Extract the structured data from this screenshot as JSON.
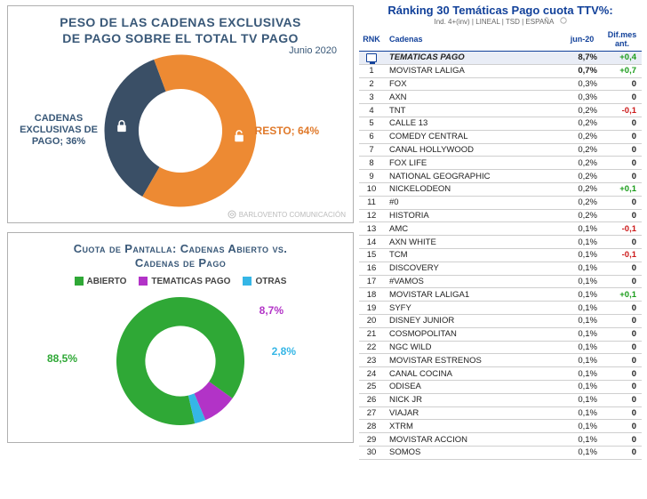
{
  "panel1": {
    "title_l1": "PESO DE LAS CADENAS EXCLUSIVAS",
    "title_l2": "DE PAGO SOBRE EL TOTAL TV PAGO",
    "date": "Junio 2020",
    "left_label": "CADENAS EXCLUSIVAS DE PAGO; 36%",
    "right_label": "RESTO; 64%",
    "donut": {
      "type": "donut",
      "values": [
        36,
        64
      ],
      "colors": [
        "#3a4f66",
        "#ed8a33"
      ],
      "inner_ratio": 0.55,
      "start_angle_deg": 120,
      "bg": "#ffffff"
    },
    "watermark": "BARLOVENTO COMUNICACIÓN"
  },
  "panel2": {
    "title_l1": "Cuota de Pantalla: Cadenas Abierto vs.",
    "title_l2": "Cadenas de Pago",
    "legend": [
      {
        "label": "ABIERTO",
        "color": "#2fa836"
      },
      {
        "label": "TEMATICAS PAGO",
        "color": "#b233c7"
      },
      {
        "label": "OTRAS",
        "color": "#35b6e6"
      }
    ],
    "labels": {
      "abierto": "88,5%",
      "tematicas": "8,7%",
      "otras": "2,8%"
    },
    "donut": {
      "type": "donut",
      "values": [
        88.5,
        8.7,
        2.8
      ],
      "colors": [
        "#2fa836",
        "#b233c7",
        "#35b6e6"
      ],
      "inner_ratio": 0.55,
      "start_angle_deg": 77,
      "bg": "#ffffff"
    }
  },
  "table": {
    "title": "Ránking 30 Temáticas Pago cuota TTV%:",
    "subtitle": "Ind. 4+(inv) | LINEAL | TSD | ESPAÑA",
    "cols": {
      "rnk": "RNK",
      "cad": "Cadenas",
      "val": "jun-20",
      "dif": "Dif.mes ant."
    },
    "header_row": {
      "name": "TEMATICAS PAGO",
      "val": "8,7%",
      "dif": "+0,4"
    },
    "rows": [
      {
        "rnk": 1,
        "name": "MOVISTAR LALIGA",
        "val": "0,7%",
        "dif": "+0,7"
      },
      {
        "rnk": 2,
        "name": "FOX",
        "val": "0,3%",
        "dif": "0"
      },
      {
        "rnk": 3,
        "name": "AXN",
        "val": "0,3%",
        "dif": "0"
      },
      {
        "rnk": 4,
        "name": "TNT",
        "val": "0,2%",
        "dif": "-0,1"
      },
      {
        "rnk": 5,
        "name": "CALLE 13",
        "val": "0,2%",
        "dif": "0"
      },
      {
        "rnk": 6,
        "name": "COMEDY CENTRAL",
        "val": "0,2%",
        "dif": "0"
      },
      {
        "rnk": 7,
        "name": "CANAL HOLLYWOOD",
        "val": "0,2%",
        "dif": "0"
      },
      {
        "rnk": 8,
        "name": "FOX LIFE",
        "val": "0,2%",
        "dif": "0"
      },
      {
        "rnk": 9,
        "name": "NATIONAL GEOGRAPHIC",
        "val": "0,2%",
        "dif": "0"
      },
      {
        "rnk": 10,
        "name": "NICKELODEON",
        "val": "0,2%",
        "dif": "+0,1"
      },
      {
        "rnk": 11,
        "name": "#0",
        "val": "0,2%",
        "dif": "0"
      },
      {
        "rnk": 12,
        "name": "HISTORIA",
        "val": "0,2%",
        "dif": "0"
      },
      {
        "rnk": 13,
        "name": "AMC",
        "val": "0,1%",
        "dif": "-0,1"
      },
      {
        "rnk": 14,
        "name": "AXN WHITE",
        "val": "0,1%",
        "dif": "0"
      },
      {
        "rnk": 15,
        "name": "TCM",
        "val": "0,1%",
        "dif": "-0,1"
      },
      {
        "rnk": 16,
        "name": "DISCOVERY",
        "val": "0,1%",
        "dif": "0"
      },
      {
        "rnk": 17,
        "name": "#VAMOS",
        "val": "0,1%",
        "dif": "0"
      },
      {
        "rnk": 18,
        "name": "MOVISTAR LALIGA1",
        "val": "0,1%",
        "dif": "+0,1"
      },
      {
        "rnk": 19,
        "name": "SYFY",
        "val": "0,1%",
        "dif": "0"
      },
      {
        "rnk": 20,
        "name": "DISNEY JUNIOR",
        "val": "0,1%",
        "dif": "0"
      },
      {
        "rnk": 21,
        "name": "COSMOPOLITAN",
        "val": "0,1%",
        "dif": "0"
      },
      {
        "rnk": 22,
        "name": "NGC WILD",
        "val": "0,1%",
        "dif": "0"
      },
      {
        "rnk": 23,
        "name": "MOVISTAR ESTRENOS",
        "val": "0,1%",
        "dif": "0"
      },
      {
        "rnk": 24,
        "name": "CANAL COCINA",
        "val": "0,1%",
        "dif": "0"
      },
      {
        "rnk": 25,
        "name": "ODISEA",
        "val": "0,1%",
        "dif": "0"
      },
      {
        "rnk": 26,
        "name": "NICK JR",
        "val": "0,1%",
        "dif": "0"
      },
      {
        "rnk": 27,
        "name": "VIAJAR",
        "val": "0,1%",
        "dif": "0"
      },
      {
        "rnk": 28,
        "name": "XTRM",
        "val": "0,1%",
        "dif": "0"
      },
      {
        "rnk": 29,
        "name": "MOVISTAR ACCION",
        "val": "0,1%",
        "dif": "0"
      },
      {
        "rnk": 30,
        "name": "SOMOS",
        "val": "0,1%",
        "dif": "0"
      }
    ]
  }
}
